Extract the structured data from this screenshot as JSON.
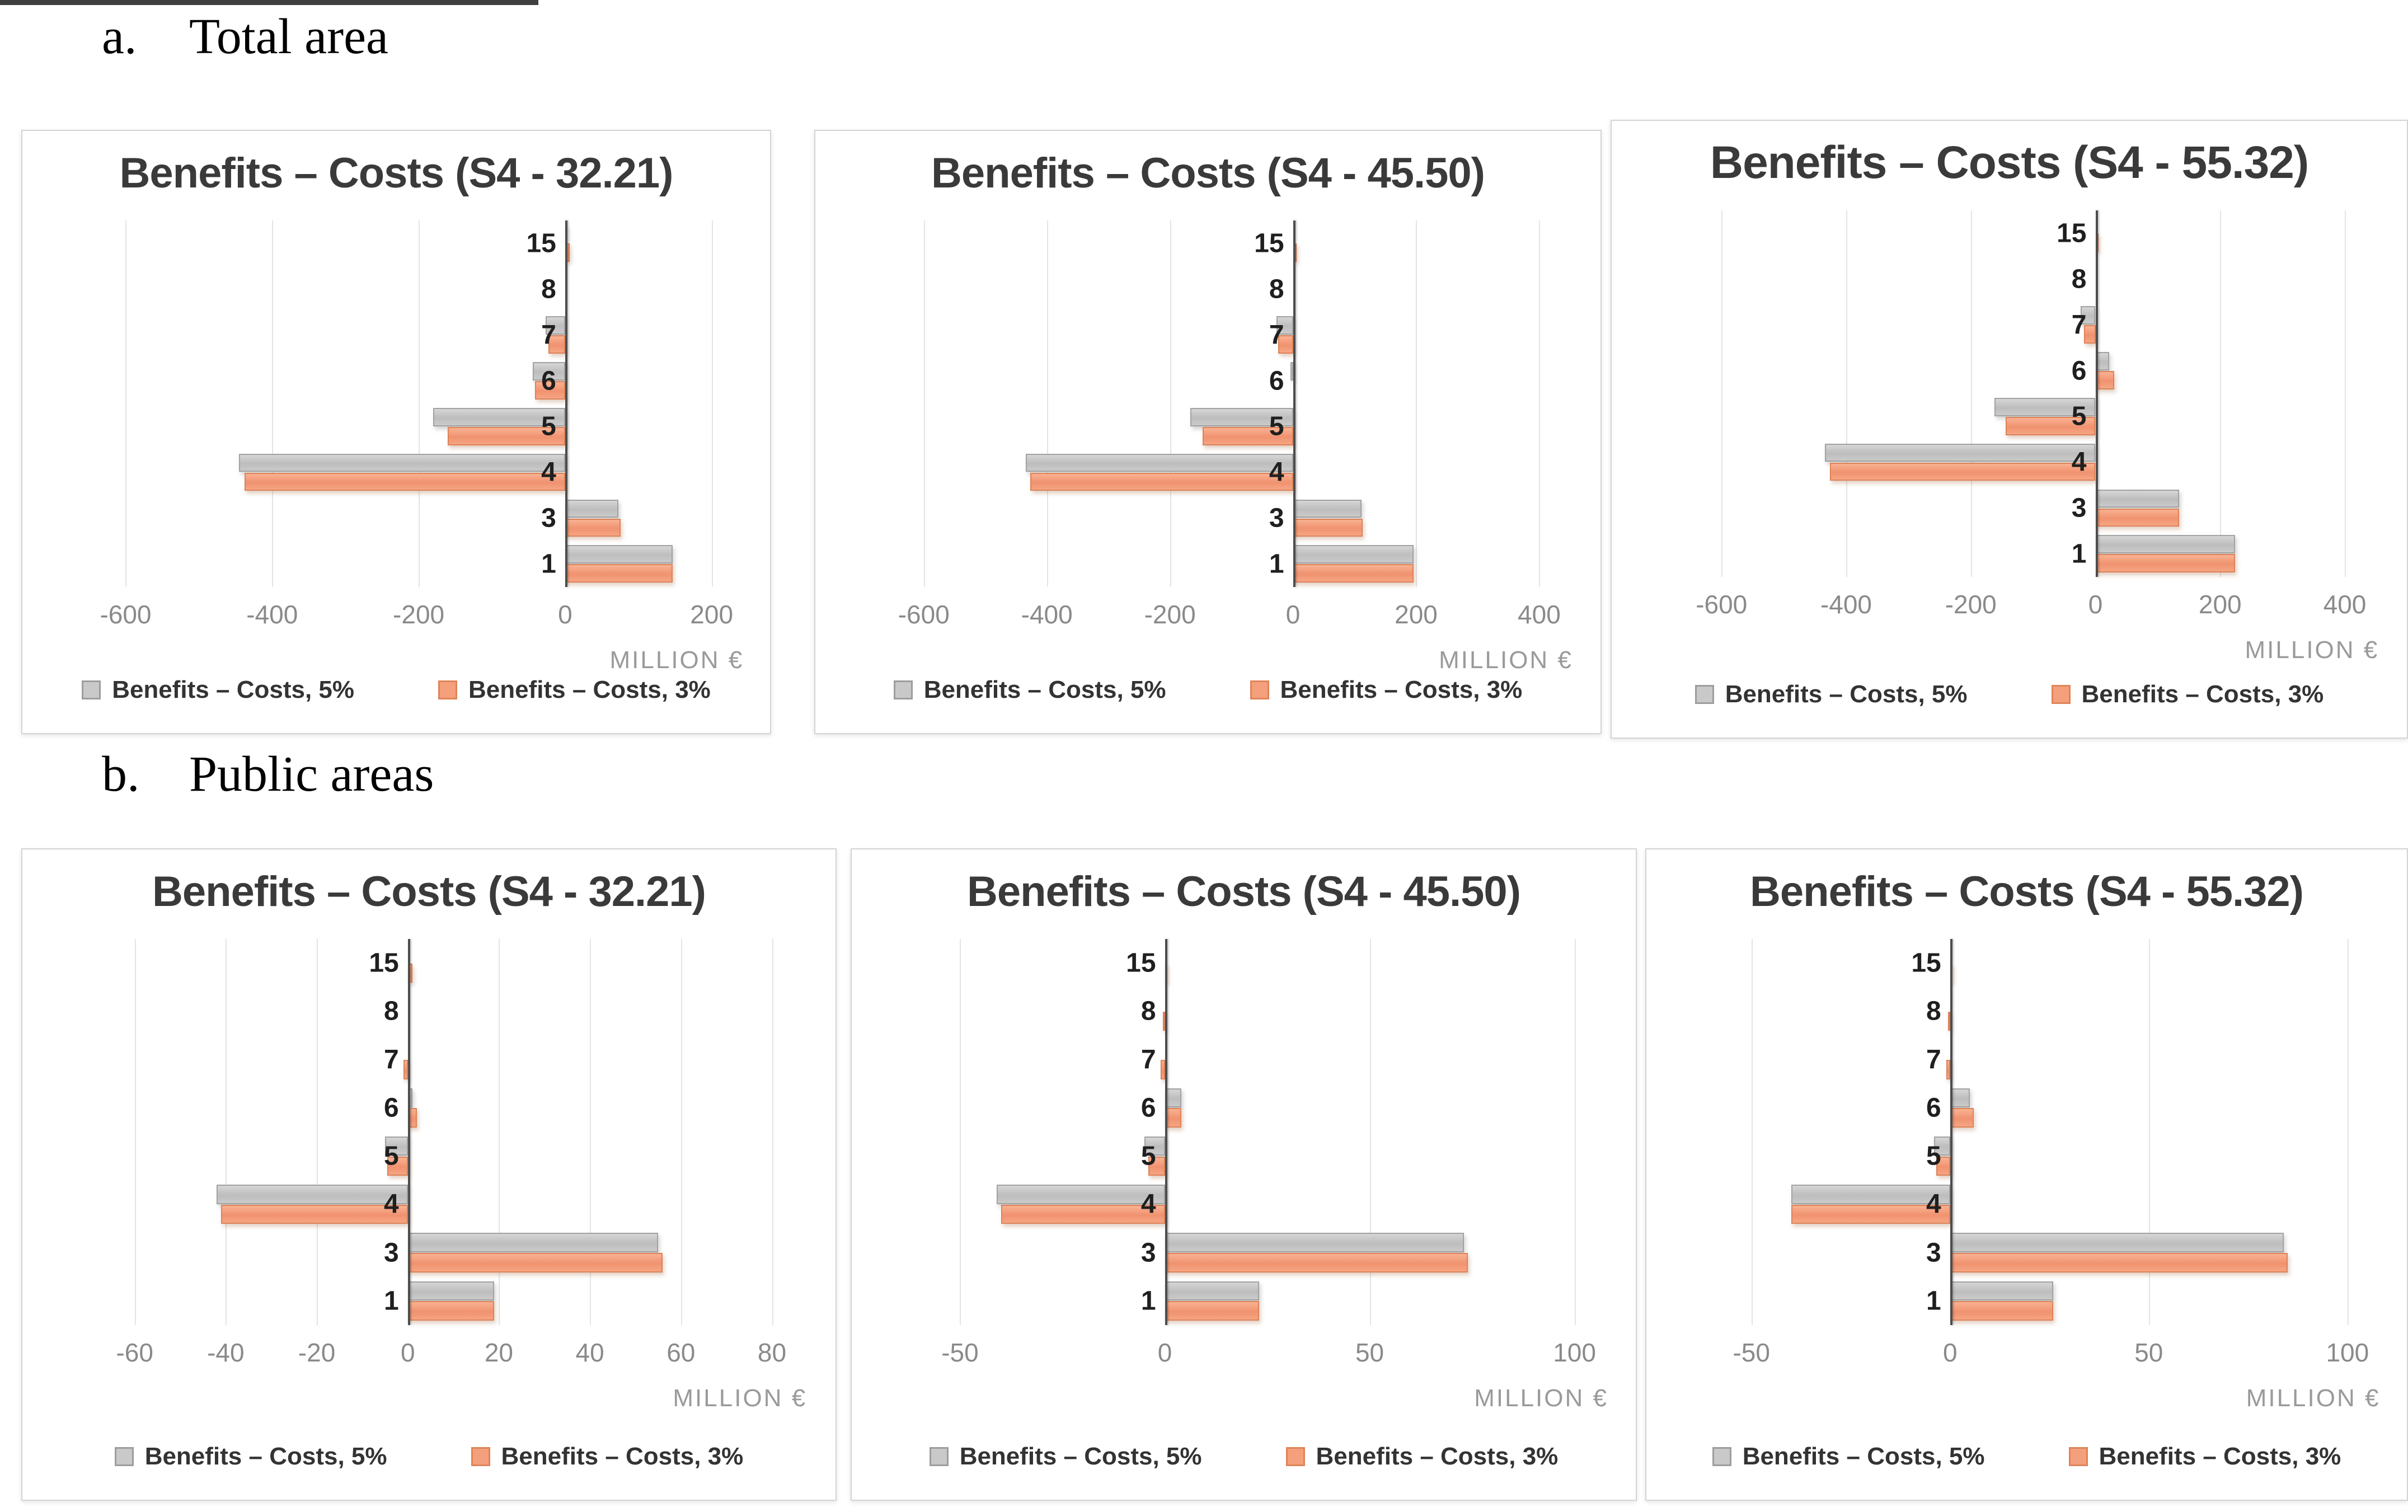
{
  "page": {
    "section_a": {
      "marker": "a.",
      "title": "Total area"
    },
    "section_b": {
      "marker": "b.",
      "title": "Public areas"
    }
  },
  "legend": {
    "series_5pct": "Benefits – Costs, 5%",
    "series_3pct": "Benefits – Costs, 3%"
  },
  "colors": {
    "bar_gray": "#c6c6c6",
    "bar_gray_border": "#a2a2a2",
    "bar_orange": "#f4a07d",
    "bar_orange_border": "#dd8258",
    "gridline": "#e4e4e4",
    "axis": "#4d4d4d",
    "tick_text": "#8a8a8a"
  },
  "chart_data": [
    {
      "type": "bar",
      "orientation": "horizontal",
      "section": "Total area",
      "title": "Benefits – Costs (S4 - 32.21)",
      "xlabel": "MILLION €",
      "categories": [
        "15",
        "8",
        "7",
        "6",
        "5",
        "4",
        "3",
        "1"
      ],
      "ticks": [
        -600,
        -400,
        -200,
        0,
        200
      ],
      "tick_labels": [
        "-600",
        "-400",
        "-200",
        "0",
        "200"
      ],
      "xlim": [
        -600,
        200
      ],
      "grid": true,
      "legend_position": "bottom",
      "series": [
        {
          "name": "Benefits – Costs, 5%",
          "values": [
            2,
            0,
            -27,
            -44,
            -180,
            -445,
            73,
            147
          ]
        },
        {
          "name": "Benefits – Costs, 3%",
          "values": [
            6,
            0,
            -23,
            -41,
            -160,
            -438,
            76,
            147
          ]
        }
      ]
    },
    {
      "type": "bar",
      "orientation": "horizontal",
      "section": "Total area",
      "title": "Benefits – Costs (S4 - 45.50)",
      "xlabel": "MILLION €",
      "categories": [
        "15",
        "8",
        "7",
        "6",
        "5",
        "4",
        "3",
        "1"
      ],
      "ticks": [
        -600,
        -400,
        -200,
        0,
        200,
        400
      ],
      "tick_labels": [
        "-600",
        "-400",
        "-200",
        "0",
        "200",
        "400"
      ],
      "xlim": [
        -600,
        400
      ],
      "grid": true,
      "legend_position": "bottom",
      "series": [
        {
          "name": "Benefits – Costs, 5%",
          "values": [
            0,
            0,
            -27,
            -4,
            -167,
            -434,
            111,
            196
          ]
        },
        {
          "name": "Benefits – Costs, 3%",
          "values": [
            6,
            0,
            -24,
            0,
            -147,
            -427,
            113,
            196
          ]
        }
      ]
    },
    {
      "type": "bar",
      "orientation": "horizontal",
      "section": "Total area",
      "title": "Benefits – Costs (S4 - 55.32)",
      "xlabel": "MILLION €",
      "categories": [
        "15",
        "8",
        "7",
        "6",
        "5",
        "4",
        "3",
        "1"
      ],
      "ticks": [
        -600,
        -400,
        -200,
        0,
        200,
        400
      ],
      "tick_labels": [
        "-600",
        "-400",
        "-200",
        "0",
        "200",
        "400"
      ],
      "xlim": [
        -600,
        400
      ],
      "grid": true,
      "legend_position": "bottom",
      "series": [
        {
          "name": "Benefits – Costs, 5%",
          "values": [
            0,
            0,
            -24,
            22,
            -162,
            -434,
            134,
            224
          ]
        },
        {
          "name": "Benefits – Costs, 3%",
          "values": [
            5,
            0,
            -18,
            30,
            -144,
            -426,
            134,
            224
          ]
        }
      ]
    },
    {
      "type": "bar",
      "orientation": "horizontal",
      "section": "Public areas",
      "title": "Benefits – Costs (S4 - 32.21)",
      "xlabel": "MILLION €",
      "categories": [
        "15",
        "8",
        "7",
        "6",
        "5",
        "4",
        "3",
        "1"
      ],
      "ticks": [
        -60,
        -40,
        -20,
        0,
        20,
        40,
        60,
        80
      ],
      "tick_labels": [
        "-60",
        "-40",
        "-20",
        "0",
        "20",
        "40",
        "60",
        "80"
      ],
      "xlim": [
        -60,
        80
      ],
      "grid": true,
      "legend_position": "bottom",
      "series": [
        {
          "name": "Benefits – Costs, 5%",
          "values": [
            0,
            0,
            0,
            1,
            -5,
            -42,
            55,
            19
          ]
        },
        {
          "name": "Benefits – Costs, 3%",
          "values": [
            1,
            0,
            -1,
            2,
            -4.5,
            -41,
            56,
            19
          ]
        }
      ]
    },
    {
      "type": "bar",
      "orientation": "horizontal",
      "section": "Public areas",
      "title": "Benefits – Costs (S4 - 45.50)",
      "xlabel": "MILLION €",
      "categories": [
        "15",
        "8",
        "7",
        "6",
        "5",
        "4",
        "3",
        "1"
      ],
      "ticks": [
        -50,
        0,
        50,
        100
      ],
      "tick_labels": [
        "-50",
        "0",
        "50",
        "100"
      ],
      "xlim": [
        -50,
        100
      ],
      "grid": true,
      "legend_position": "bottom",
      "series": [
        {
          "name": "Benefits – Costs, 5%",
          "values": [
            0,
            0,
            0,
            4,
            -5,
            -41,
            73,
            23
          ]
        },
        {
          "name": "Benefits – Costs, 3%",
          "values": [
            0.5,
            -0.5,
            -1,
            4,
            -4,
            -40,
            74,
            23
          ]
        }
      ]
    },
    {
      "type": "bar",
      "orientation": "horizontal",
      "section": "Public areas",
      "title": "Benefits – Costs (S4 - 55.32)",
      "xlabel": "MILLION €",
      "categories": [
        "15",
        "8",
        "7",
        "6",
        "5",
        "4",
        "3",
        "1"
      ],
      "ticks": [
        -50,
        0,
        50,
        100
      ],
      "tick_labels": [
        "-50",
        "0",
        "50",
        "100"
      ],
      "xlim": [
        -50,
        100
      ],
      "grid": true,
      "legend_position": "bottom",
      "series": [
        {
          "name": "Benefits – Costs, 5%",
          "values": [
            0,
            0,
            0,
            5,
            -4,
            -40,
            84,
            26
          ]
        },
        {
          "name": "Benefits – Costs, 3%",
          "values": [
            0.5,
            -0.5,
            -1,
            6,
            -3.5,
            -40,
            85,
            26
          ]
        }
      ]
    }
  ]
}
